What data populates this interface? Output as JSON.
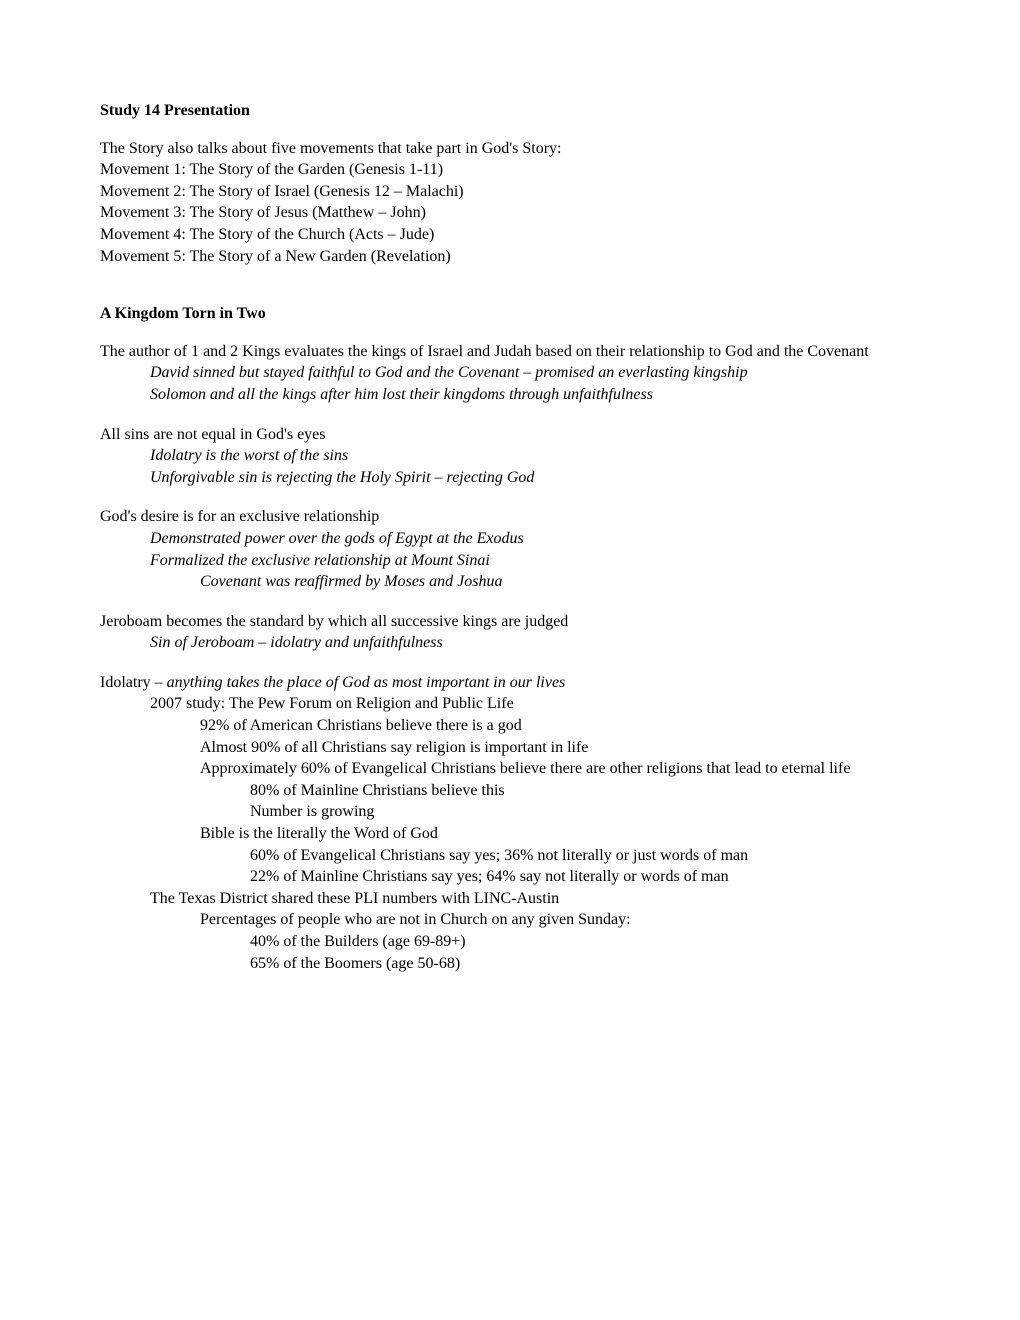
{
  "title": "Study 14 Presentation",
  "movements": {
    "intro": "The Story also talks about five movements that take part in God's Story:",
    "m1": "Movement 1: The Story of the Garden (Genesis 1-11)",
    "m2": "Movement 2: The Story of Israel (Genesis 12 – Malachi)",
    "m3": "Movement 3: The Story of Jesus (Matthew – John)",
    "m4": "Movement 4: The Story of the Church (Acts – Jude)",
    "m5": "Movement 5: The Story of a New Garden (Revelation)"
  },
  "section2": {
    "heading": "A Kingdom Torn in Two",
    "p1": "The author of 1 and 2 Kings evaluates the kings of Israel and Judah based on their relationship to God and the Covenant",
    "p1a": "David sinned but stayed faithful to God and the Covenant – promised an everlasting kingship",
    "p1b": "Solomon and all the kings after him lost their kingdoms through unfaithfulness",
    "p2": "All sins are not equal in God's eyes",
    "p2a": "Idolatry is the worst of the sins",
    "p2b": "Unforgivable sin is rejecting the Holy Spirit – rejecting God",
    "p3": "God's desire is for an exclusive relationship",
    "p3a": "Demonstrated power over the gods of Egypt at the Exodus",
    "p3b": "Formalized the exclusive relationship at Mount Sinai",
    "p3c": "Covenant was reaffirmed by Moses and Joshua",
    "p4": "Jeroboam becomes the standard by which all successive kings are judged",
    "p4a": "Sin of Jeroboam – idolatry and unfaithfulness",
    "p5_lead": "Idolatry – ",
    "p5_ital": "anything takes the place of God as most important in our lives",
    "p5a": "2007 study: The Pew Forum on Religion and Public Life",
    "p5a1": "92% of American Christians believe there is a god",
    "p5a2": "Almost 90% of all Christians say religion is important in life",
    "p5a3": "Approximately 60% of Evangelical Christians believe there are other religions that lead to eternal life",
    "p5a3a": "80% of Mainline Christians believe this",
    "p5a3b": "Number is growing",
    "p5a4": "Bible is the literally the Word of God",
    "p5a4a": "60% of Evangelical Christians say yes; 36% not literally or just words of man",
    "p5a4b": "22% of Mainline Christians say yes; 64% say not literally or words of man",
    "p5b": "The Texas District shared these PLI numbers with LINC-Austin",
    "p5b1": "Percentages of people who are not in Church on any given Sunday:",
    "p5b1a": "40% of the Builders (age 69-89+)",
    "p5b1b": "65% of the Boomers (age 50-68)"
  }
}
